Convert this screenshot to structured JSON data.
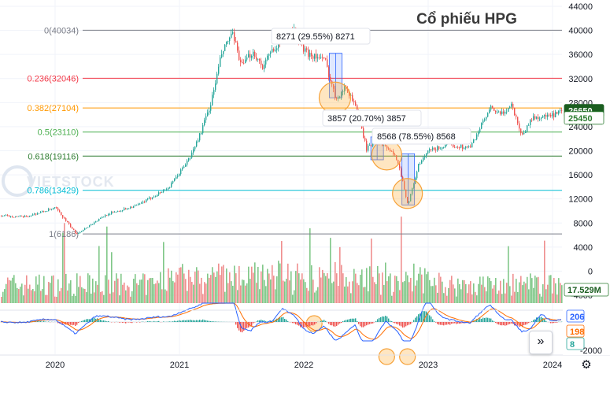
{
  "chart_data": [
    {
      "type": "candlestick",
      "title": "Cổ phiếu HPG",
      "watermark": "VIETSTOCK",
      "x_tick_labels": [
        "2020",
        "2021",
        "2022",
        "2023",
        "2024"
      ],
      "y_tick_labels": [
        "44000",
        "40000",
        "36000",
        "32000",
        "28000",
        "24000",
        "20000",
        "16000",
        "12000",
        "8000",
        "4000",
        "0",
        "-4000"
      ],
      "ylim": [
        -4000,
        44000
      ],
      "price_path": [
        {
          "t": "2019-07",
          "v": 9300
        },
        {
          "t": "2019-10",
          "v": 9000
        },
        {
          "t": "2020-01",
          "v": 10500
        },
        {
          "t": "2020-03",
          "v": 6186
        },
        {
          "t": "2020-06",
          "v": 9500
        },
        {
          "t": "2020-09",
          "v": 11000
        },
        {
          "t": "2020-12",
          "v": 14000
        },
        {
          "t": "2021-02",
          "v": 19000
        },
        {
          "t": "2021-03",
          "v": 23000
        },
        {
          "t": "2021-04",
          "v": 28000
        },
        {
          "t": "2021-05",
          "v": 36000
        },
        {
          "t": "2021-06",
          "v": 39500
        },
        {
          "t": "2021-07",
          "v": 34000
        },
        {
          "t": "2021-08",
          "v": 36500
        },
        {
          "t": "2021-09",
          "v": 34000
        },
        {
          "t": "2021-10",
          "v": 37000
        },
        {
          "t": "2021-11",
          "v": 39000
        },
        {
          "t": "2021-12",
          "v": 40034
        },
        {
          "t": "2022-01",
          "v": 36500
        },
        {
          "t": "2022-03",
          "v": 35000
        },
        {
          "t": "2022-04",
          "v": 28800
        },
        {
          "t": "2022-05",
          "v": 30500
        },
        {
          "t": "2022-06",
          "v": 27500
        },
        {
          "t": "2022-07",
          "v": 20300
        },
        {
          "t": "2022-08",
          "v": 21800
        },
        {
          "t": "2022-09",
          "v": 20500
        },
        {
          "t": "2022-10",
          "v": 18500
        },
        {
          "t": "2022-11",
          "v": 11000
        },
        {
          "t": "2022-12",
          "v": 17500
        },
        {
          "t": "2023-01",
          "v": 20000
        },
        {
          "t": "2023-03",
          "v": 21000
        },
        {
          "t": "2023-05",
          "v": 20500
        },
        {
          "t": "2023-06",
          "v": 24000
        },
        {
          "t": "2023-07",
          "v": 27000
        },
        {
          "t": "2023-08",
          "v": 26000
        },
        {
          "t": "2023-09",
          "v": 27700
        },
        {
          "t": "2023-10",
          "v": 22500
        },
        {
          "t": "2023-11",
          "v": 25500
        },
        {
          "t": "2024-01",
          "v": 25800
        },
        {
          "t": "2024-02",
          "v": 26650
        }
      ],
      "fibonacci_levels": [
        {
          "label": "0(40034)",
          "value": 40034,
          "color": "#787b86"
        },
        {
          "label": "0.236(32046)",
          "value": 32046,
          "color": "#f23645"
        },
        {
          "label": "0.382(27104)",
          "value": 27104,
          "color": "#ff9800"
        },
        {
          "label": "0.5(23110)",
          "value": 23110,
          "color": "#4caf50"
        },
        {
          "label": "0.618(19116)",
          "value": 19116,
          "color": "#2e7d32"
        },
        {
          "label": "0.786(13429)",
          "value": 13429,
          "color": "#00bcd4"
        },
        {
          "label": "1(6186)",
          "value": 6186,
          "color": "#787b86"
        }
      ],
      "measure_annotations": [
        {
          "text": "8271 (29.55%) 8271",
          "from": 36200,
          "to": 28800,
          "t": "2022-04"
        },
        {
          "text": "3857 (20.70%) 3857",
          "from": 22300,
          "to": 18500,
          "t": "2022-08"
        },
        {
          "text": "8568 (78.55%) 8568",
          "from": 11000,
          "to": 19500,
          "t": "2022-11"
        }
      ],
      "price_badges": [
        {
          "text": "26650",
          "value": 26650,
          "bg": "#1b5e20",
          "fg": "#ffffff"
        },
        {
          "text": "25450",
          "value": 25450,
          "bg": "#ffffff",
          "fg": "#2e7d32"
        }
      ],
      "volume": {
        "last_label": "17.529M",
        "description": "daily volume bars, mixed red/green"
      },
      "macd": {
        "labels": [
          "206",
          "198",
          "8"
        ],
        "label_colors": [
          "#2962ff",
          "#ff6d00",
          "#26a69a"
        ],
        "y_tick_labels": [
          "-2000"
        ]
      },
      "highlight_circles_count": 6
    }
  ],
  "controls": {
    "scroll_right_label": "»",
    "settings_label": "⚙"
  }
}
